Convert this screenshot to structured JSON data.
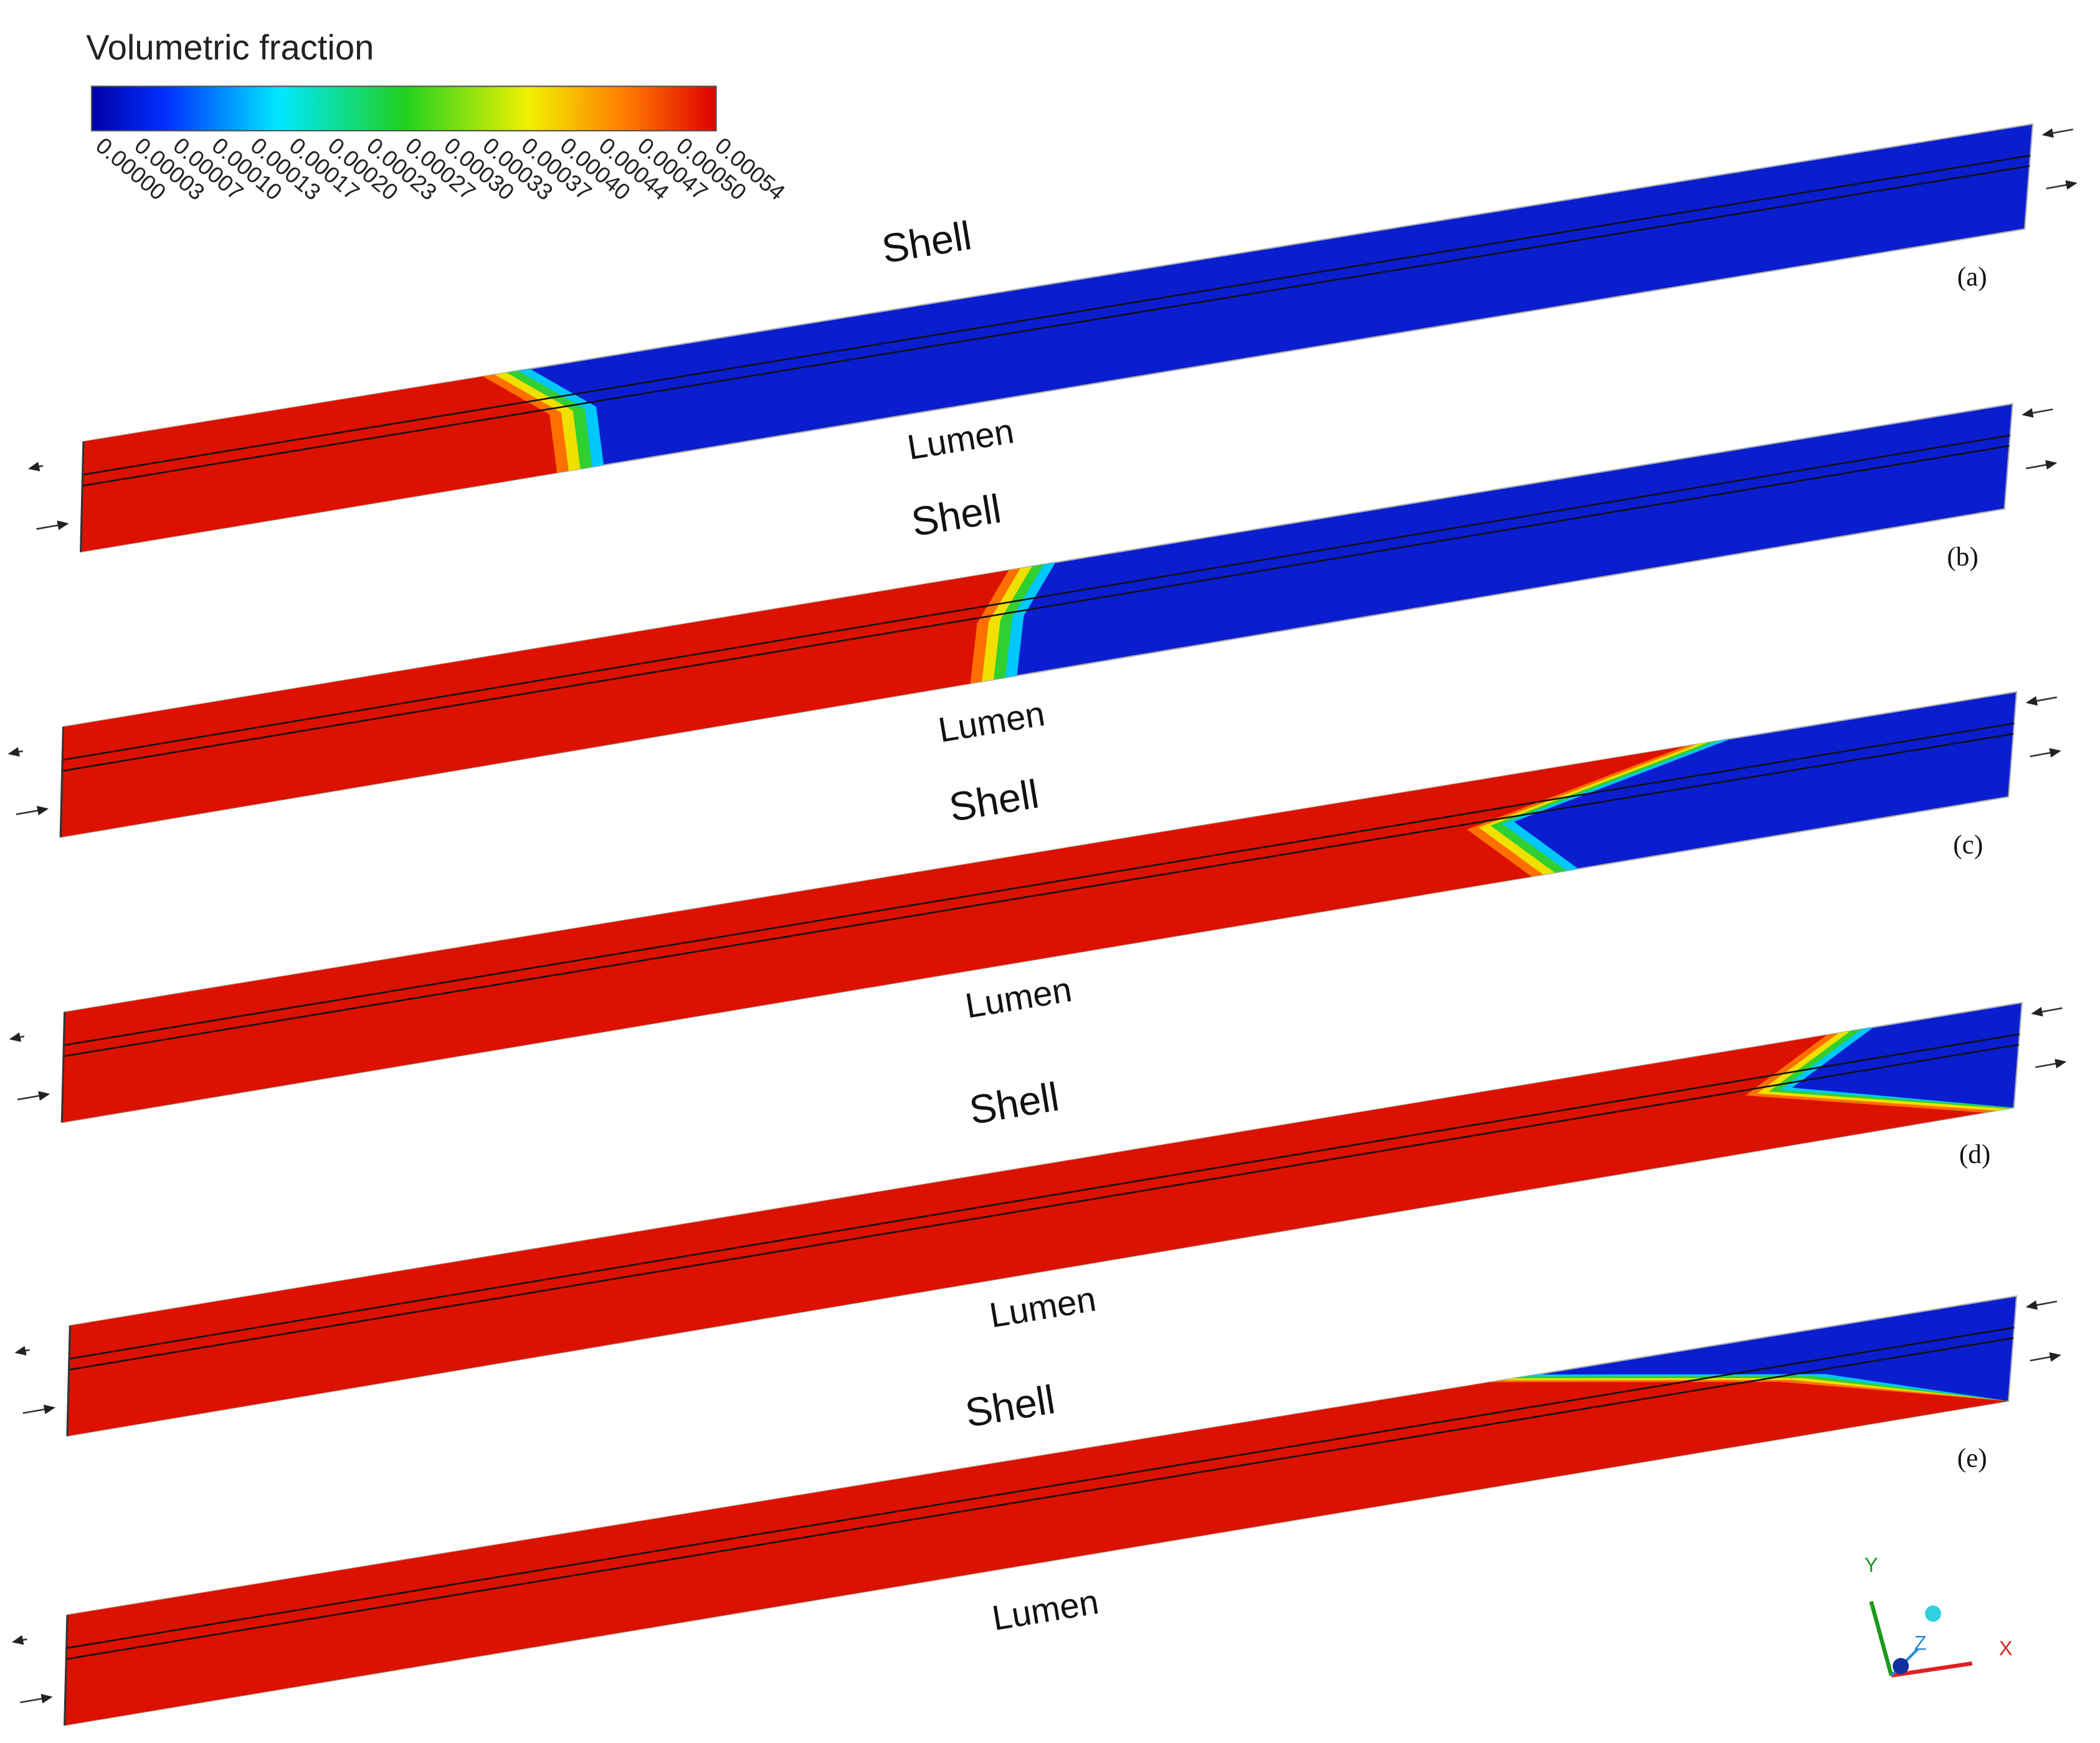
{
  "colorbar": {
    "title": "Volumetric fraction",
    "ticks": [
      "0.00000",
      "0.00003",
      "0.00007",
      "0.00010",
      "0.00013",
      "0.00017",
      "0.00020",
      "0.00023",
      "0.00027",
      "0.00030",
      "0.00033",
      "0.00037",
      "0.00040",
      "0.00044",
      "0.00047",
      "0.00050",
      "0.00054"
    ]
  },
  "panels": [
    {
      "shell": "Shell",
      "lumen": "Lumen",
      "label": "(a)"
    },
    {
      "shell": "Shell",
      "lumen": "Lumen",
      "label": "(b)"
    },
    {
      "shell": "Shell",
      "lumen": "Lumen",
      "label": "(c)"
    },
    {
      "shell": "Shell",
      "lumen": "Lumen",
      "label": "(d)"
    },
    {
      "shell": "Shell",
      "lumen": "Lumen",
      "label": "(e)"
    }
  ],
  "axes": {
    "x": "X",
    "y": "Y",
    "z": "Z"
  }
}
